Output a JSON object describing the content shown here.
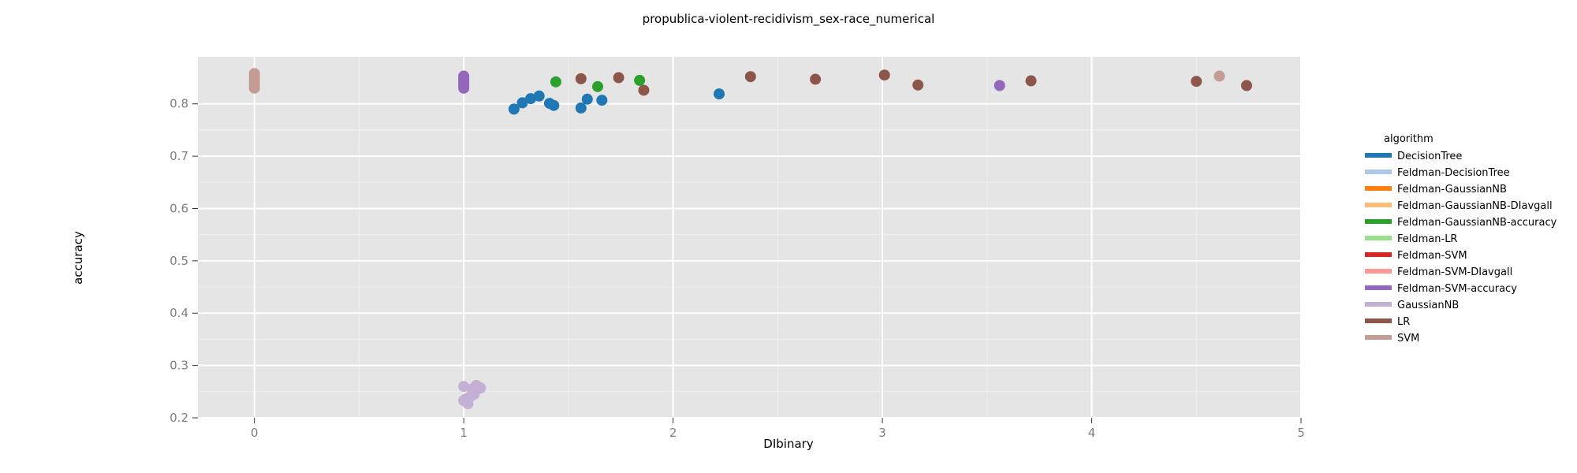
{
  "chart_data": {
    "type": "scatter",
    "title": "propublica-violent-recidivism_sex-race_numerical",
    "xlabel": "DIbinary",
    "ylabel": "accuracy",
    "xlim": [
      -0.27,
      5.0
    ],
    "ylim": [
      0.2,
      0.89
    ],
    "x_ticks": [
      0,
      1,
      2,
      3,
      4,
      5
    ],
    "y_ticks": [
      0.2,
      0.3,
      0.4,
      0.5,
      0.6,
      0.7,
      0.8
    ],
    "grid": true,
    "legend_position": "right",
    "legend_title": "algorithm",
    "series": [
      {
        "name": "DecisionTree",
        "color": "#1f77b4",
        "points": [
          [
            1.24,
            0.79
          ],
          [
            1.28,
            0.802
          ],
          [
            1.32,
            0.81
          ],
          [
            1.36,
            0.815
          ],
          [
            1.41,
            0.801
          ],
          [
            1.43,
            0.797
          ],
          [
            1.56,
            0.792
          ],
          [
            1.59,
            0.809
          ],
          [
            1.66,
            0.807
          ],
          [
            2.22,
            0.819
          ]
        ]
      },
      {
        "name": "Feldman-DecisionTree",
        "color": "#aec7e8",
        "points": []
      },
      {
        "name": "Feldman-GaussianNB",
        "color": "#ff7f0e",
        "points": []
      },
      {
        "name": "Feldman-GaussianNB-DIavgall",
        "color": "#ffbb78",
        "points": []
      },
      {
        "name": "Feldman-GaussianNB-accuracy",
        "color": "#2ca02c",
        "points": [
          [
            1.44,
            0.842
          ],
          [
            1.64,
            0.833
          ],
          [
            1.84,
            0.845
          ]
        ]
      },
      {
        "name": "Feldman-LR",
        "color": "#98df8a",
        "points": []
      },
      {
        "name": "Feldman-SVM",
        "color": "#d62728",
        "points": []
      },
      {
        "name": "Feldman-SVM-DIavgall",
        "color": "#ff9896",
        "points": []
      },
      {
        "name": "Feldman-SVM-accuracy",
        "color": "#9467bd",
        "points": [
          [
            1.0,
            0.83
          ],
          [
            1.0,
            0.834
          ],
          [
            1.0,
            0.838
          ],
          [
            1.0,
            0.842
          ],
          [
            1.0,
            0.846
          ],
          [
            1.0,
            0.85
          ],
          [
            1.0,
            0.853
          ],
          [
            3.56,
            0.835
          ]
        ]
      },
      {
        "name": "GaussianNB",
        "color": "#c5b0d5",
        "points": [
          [
            1.0,
            0.26
          ],
          [
            1.01,
            0.236
          ],
          [
            1.02,
            0.227
          ],
          [
            1.03,
            0.24
          ],
          [
            1.04,
            0.255
          ],
          [
            1.05,
            0.245
          ],
          [
            1.06,
            0.262
          ],
          [
            1.08,
            0.257
          ],
          [
            1.0,
            0.233
          ]
        ]
      },
      {
        "name": "LR",
        "color": "#8c564b",
        "points": [
          [
            1.56,
            0.848
          ],
          [
            1.74,
            0.85
          ],
          [
            1.86,
            0.826
          ],
          [
            2.37,
            0.852
          ],
          [
            2.68,
            0.847
          ],
          [
            3.01,
            0.855
          ],
          [
            3.17,
            0.836
          ],
          [
            3.71,
            0.844
          ],
          [
            4.5,
            0.843
          ],
          [
            4.74,
            0.835
          ]
        ]
      },
      {
        "name": "SVM",
        "color": "#c49c94",
        "points": [
          [
            0.0,
            0.83
          ],
          [
            0.0,
            0.836
          ],
          [
            0.0,
            0.842
          ],
          [
            0.0,
            0.848
          ],
          [
            0.0,
            0.853
          ],
          [
            0.0,
            0.858
          ],
          [
            4.61,
            0.853
          ]
        ]
      }
    ]
  }
}
